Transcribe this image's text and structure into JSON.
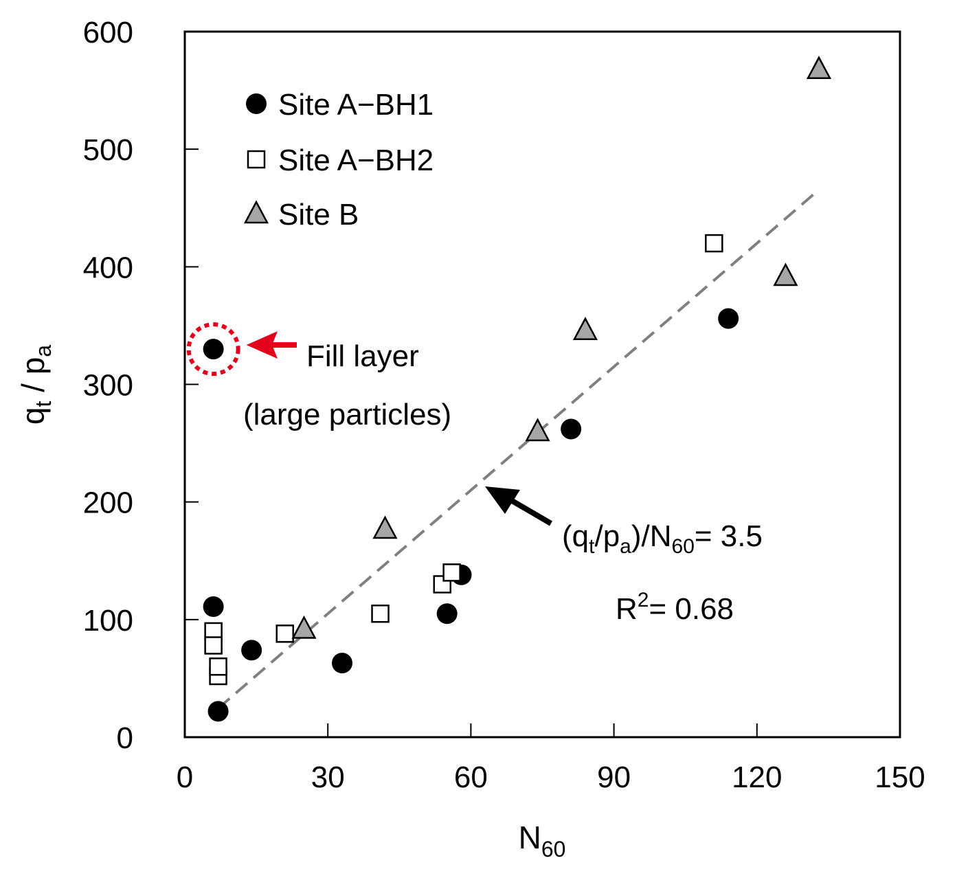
{
  "chart_data": {
    "type": "scatter",
    "title": "",
    "xlabel": {
      "main": "N",
      "sub": "60"
    },
    "ylabel": {
      "q": "q",
      "q_sub": "t",
      "sep": " / ",
      "p": "p",
      "p_sub": "a"
    },
    "xlim": [
      0,
      150
    ],
    "ylim": [
      0,
      600
    ],
    "xticks": [
      0,
      30,
      60,
      90,
      120,
      150
    ],
    "yticks": [
      0,
      100,
      200,
      300,
      400,
      500,
      600
    ],
    "xtick_labels": [
      "0",
      "30",
      "60",
      "90",
      "120",
      "150"
    ],
    "ytick_labels": [
      "0",
      "100",
      "200",
      "300",
      "400",
      "500",
      "600"
    ],
    "grid": false,
    "legend_position": "top-left",
    "series": [
      {
        "name": "Site A−BH1",
        "marker": "circle-filled",
        "color": "#000000",
        "points": [
          [
            6,
            111
          ],
          [
            7,
            22
          ],
          [
            14,
            74
          ],
          [
            33,
            63
          ],
          [
            55,
            105
          ],
          [
            58,
            138
          ],
          [
            81,
            262
          ],
          [
            114,
            356
          ],
          [
            6,
            330
          ]
        ]
      },
      {
        "name": "Site A−BH2",
        "marker": "square-open",
        "color": "#000000",
        "points": [
          [
            6,
            90
          ],
          [
            6,
            78
          ],
          [
            7,
            52
          ],
          [
            7,
            60
          ],
          [
            21,
            88
          ],
          [
            41,
            105
          ],
          [
            54,
            130
          ],
          [
            56,
            140
          ],
          [
            111,
            420
          ]
        ]
      },
      {
        "name": "Site B",
        "marker": "triangle-gray",
        "color": "#a6a6a6",
        "points": [
          [
            25,
            92
          ],
          [
            42,
            177
          ],
          [
            74,
            260
          ],
          [
            84,
            346
          ],
          [
            126,
            392
          ],
          [
            133,
            568
          ]
        ]
      }
    ],
    "trendline": {
      "style": "dashed",
      "color": "#808080",
      "slope": 3.5,
      "x_range": [
        7,
        133
      ],
      "annotation": {
        "prefix": "(q",
        "sub1": "t",
        "mid": "/p",
        "sub2": "a",
        "mid2": ")/N",
        "sub3": "60",
        "suffix": "= 3.5"
      },
      "r2": {
        "main": "R",
        "sup": "2",
        "suffix": "= 0.68"
      }
    },
    "highlight": {
      "point": [
        6,
        330
      ],
      "ring_color": "#e3001b",
      "label_line1": "Fill layer",
      "label_line2": "(large particles)"
    }
  }
}
